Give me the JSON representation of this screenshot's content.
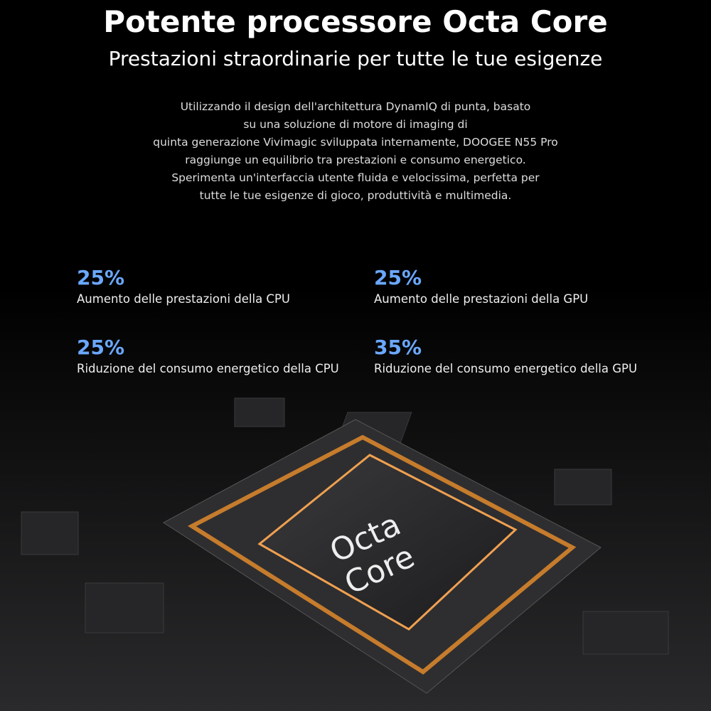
{
  "header": {
    "title": "Potente processore Octa Core",
    "subtitle": "Prestazioni straordinarie per tutte le tue esigenze"
  },
  "description": [
    "Utilizzando il design dell'architettura DynamIQ di punta, basato",
    "su una soluzione di motore di imaging di",
    "quinta generazione Vivimagic sviluppata internamente, DOOGEE N55 Pro",
    "raggiunge un equilibrio tra prestazioni e consumo energetico.",
    "Sperimenta un'interfaccia utente fluida e velocissima, perfetta per",
    "tutte le tue esigenze di gioco, produttività e multimedia."
  ],
  "stats": [
    {
      "value": "25%",
      "label": "Aumento delle prestazioni della CPU"
    },
    {
      "value": "25%",
      "label": "Aumento delle prestazioni della GPU"
    },
    {
      "value": "25%",
      "label": "Riduzione del consumo energetico della CPU"
    },
    {
      "value": "35%",
      "label": "Riduzione del consumo energetico della GPU"
    }
  ],
  "chip": {
    "line1": "Octa",
    "line2": "Core"
  }
}
